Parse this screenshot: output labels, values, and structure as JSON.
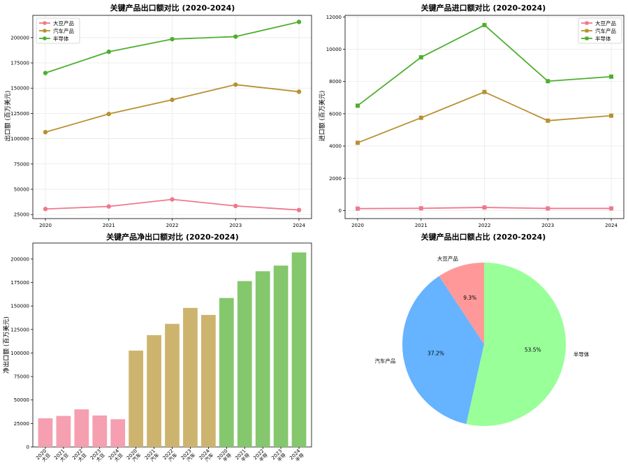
{
  "colors": {
    "soy": "#f0788c",
    "auto": "#b8902f",
    "semi": "#4daf2f",
    "soy_bar": "#f59fb0",
    "auto_bar": "#cdb46e",
    "semi_bar": "#85c76c",
    "soy_pie": "#ff9999",
    "auto_pie": "#66b3ff",
    "semi_pie": "#99ff99"
  },
  "chart_data": [
    {
      "type": "line",
      "title": "关键产品出口额对比 (2020-2024)",
      "ylabel": "出口额 (百万美元)",
      "x": [
        "2020",
        "2021",
        "2022",
        "2023",
        "2024"
      ],
      "ylim": [
        21000,
        222000
      ],
      "yticks": [
        25000,
        50000,
        75000,
        100000,
        125000,
        150000,
        175000,
        200000
      ],
      "ytick_labels": [
        "25000",
        "50000",
        "75000",
        "100000",
        "125000",
        "150000",
        "175000",
        "200000"
      ],
      "marker": "circle",
      "series": [
        {
          "name": "大豆产品",
          "color_key": "soy",
          "values": [
            30500,
            33000,
            40000,
            33500,
            29500
          ]
        },
        {
          "name": "汽车产品",
          "color_key": "auto",
          "values": [
            106500,
            124500,
            138500,
            153500,
            146500
          ]
        },
        {
          "name": "半导体",
          "color_key": "semi",
          "values": [
            165000,
            186000,
            198500,
            201000,
            215500
          ]
        }
      ]
    },
    {
      "type": "line",
      "title": "关键产品进口额对比 (2020-2024)",
      "ylabel": "进口额 (百万美元)",
      "x": [
        "2020",
        "2021",
        "2022",
        "2023",
        "2024"
      ],
      "ylim": [
        -500,
        12100
      ],
      "yticks": [
        0,
        2000,
        4000,
        6000,
        8000,
        10000,
        12000
      ],
      "ytick_labels": [
        "0",
        "2000",
        "4000",
        "6000",
        "8000",
        "10000",
        "12000"
      ],
      "marker": "square",
      "series": [
        {
          "name": "大豆产品",
          "color_key": "soy",
          "values": [
            120,
            140,
            190,
            130,
            130
          ]
        },
        {
          "name": "汽车产品",
          "color_key": "auto",
          "values": [
            4200,
            5750,
            7350,
            5570,
            5880
          ]
        },
        {
          "name": "半导体",
          "color_key": "semi",
          "values": [
            6500,
            9500,
            11500,
            8020,
            8300
          ]
        }
      ]
    },
    {
      "type": "bar",
      "title": "关键产品净出口额对比 (2020-2024)",
      "ylabel": "净出口额 (百万美元)",
      "ylim": [
        0,
        217000
      ],
      "yticks": [
        0,
        25000,
        50000,
        75000,
        100000,
        125000,
        150000,
        175000,
        200000
      ],
      "ytick_labels": [
        "0",
        "25000",
        "50000",
        "75000",
        "100000",
        "125000",
        "150000",
        "175000",
        "200000"
      ],
      "categories": [
        {
          "year": "2020",
          "product": "大豆"
        },
        {
          "year": "2021",
          "product": "大豆"
        },
        {
          "year": "2022",
          "product": "大豆"
        },
        {
          "year": "2023",
          "product": "大豆"
        },
        {
          "year": "2024",
          "product": "大豆"
        },
        {
          "year": "2020",
          "product": "汽车"
        },
        {
          "year": "2021",
          "product": "汽车"
        },
        {
          "year": "2022",
          "product": "汽车"
        },
        {
          "year": "2023",
          "product": "汽车"
        },
        {
          "year": "2024",
          "product": "汽车"
        },
        {
          "year": "2020",
          "product": "半导"
        },
        {
          "year": "2021",
          "product": "半导"
        },
        {
          "year": "2022",
          "product": "半导"
        },
        {
          "year": "2023",
          "product": "半导"
        },
        {
          "year": "2024",
          "product": "半导"
        }
      ],
      "values": [
        30500,
        33000,
        40000,
        33500,
        29500,
        102500,
        119000,
        131000,
        148000,
        140500,
        158500,
        176500,
        187000,
        193000,
        207000
      ],
      "color_keys": [
        "soy_bar",
        "soy_bar",
        "soy_bar",
        "soy_bar",
        "soy_bar",
        "auto_bar",
        "auto_bar",
        "auto_bar",
        "auto_bar",
        "auto_bar",
        "semi_bar",
        "semi_bar",
        "semi_bar",
        "semi_bar",
        "semi_bar"
      ]
    },
    {
      "type": "pie",
      "title": "关键产品出口额占比 (2020-2024)",
      "slices": [
        {
          "label": "大豆产品",
          "value": 9.3,
          "pct_label": "9.3%",
          "color_key": "soy_pie"
        },
        {
          "label": "汽车产品",
          "value": 37.2,
          "pct_label": "37.2%",
          "color_key": "auto_pie"
        },
        {
          "label": "半导体",
          "value": 53.5,
          "pct_label": "53.5%",
          "color_key": "semi_pie"
        }
      ]
    }
  ]
}
